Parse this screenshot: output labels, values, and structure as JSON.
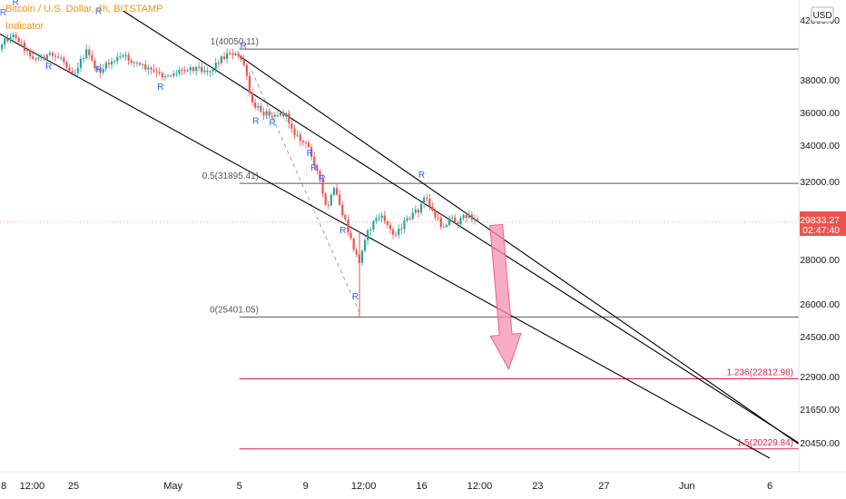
{
  "header": {
    "title": "Bitcoin / U.S. Dollar, 4h, BITSTAMP",
    "indicator": "Indicator"
  },
  "price_axis": {
    "currency": "USD",
    "last_price": "29833.27",
    "countdown": "02:47:40"
  },
  "colors": {
    "up_candle": "#26a69a",
    "down_candle": "#ef5350",
    "channel": "#000000",
    "fib_neutral": "#555555",
    "fib_target": "#e0204a",
    "arrow": "#f48fb1",
    "marker": "#2962ff",
    "title": "#f29312"
  },
  "chart_data": {
    "type": "candlestick",
    "title": "Bitcoin / U.S. Dollar, 4h, BITSTAMP",
    "y_axis_ticks": [
      "42000.00",
      "38000.00",
      "36000.00",
      "34000.00",
      "32000.00",
      "28000.00",
      "26000.00",
      "24500.00",
      "22900.00",
      "21650.00",
      "20450.00"
    ],
    "y_axis_ticks_full": [
      42000,
      38000,
      36000,
      34000,
      32000,
      28000,
      26000,
      24500,
      22900,
      21650,
      20450
    ],
    "x_axis_ticks": [
      "8",
      "12:00",
      "25",
      "May",
      "5",
      "9",
      "12:00",
      "16",
      "12:00",
      "23",
      "27",
      "Jun",
      "6"
    ],
    "fib_levels": [
      {
        "label": "1(40050.11)",
        "value": 40050.11
      },
      {
        "label": "0.5(31895.41)",
        "value": 31895.41
      },
      {
        "label": "0(25401.05)",
        "value": 25401.05
      },
      {
        "label": "1.236(22812.98)",
        "value": 22812.98
      },
      {
        "label": "1.5(20229.84)",
        "value": 20229.84
      }
    ],
    "fib_range_start": "May 5",
    "reversal_marker": "R",
    "last_price": 29833.27,
    "price_path": [
      {
        "t": "Apr 20 00:00",
        "price": 39300
      },
      {
        "t": "Apr 20 18:00",
        "price": 40600
      },
      {
        "t": "Apr 21 12:00",
        "price": 41000
      },
      {
        "t": "Apr 22 06:00",
        "price": 39800
      },
      {
        "t": "Apr 22 18:00",
        "price": 39400
      },
      {
        "t": "Apr 23 12:00",
        "price": 39600
      },
      {
        "t": "Apr 24 06:00",
        "price": 39500
      },
      {
        "t": "Apr 25 00:00",
        "price": 38400
      },
      {
        "t": "Apr 25 18:00",
        "price": 39900
      },
      {
        "t": "Apr 26 12:00",
        "price": 38500
      },
      {
        "t": "Apr 27 06:00",
        "price": 39200
      },
      {
        "t": "Apr 28 00:00",
        "price": 39600
      },
      {
        "t": "Apr 28 18:00",
        "price": 39100
      },
      {
        "t": "Apr 29 12:00",
        "price": 38700
      },
      {
        "t": "Apr 30 06:00",
        "price": 38300
      },
      {
        "t": "May 1 00:00",
        "price": 38400
      },
      {
        "t": "May 1 18:00",
        "price": 38800
      },
      {
        "t": "May 2 12:00",
        "price": 38800
      },
      {
        "t": "May 3 06:00",
        "price": 38600
      },
      {
        "t": "May 3 18:00",
        "price": 39300
      },
      {
        "t": "May 4 12:00",
        "price": 39900
      },
      {
        "t": "May 5 06:00",
        "price": 39200
      },
      {
        "t": "May 5 18:00",
        "price": 36500
      },
      {
        "t": "May 6 12:00",
        "price": 36000
      },
      {
        "t": "May 7 06:00",
        "price": 35900
      },
      {
        "t": "May 7 18:00",
        "price": 35900
      },
      {
        "t": "May 8 12:00",
        "price": 34500
      },
      {
        "t": "May 9 06:00",
        "price": 33800
      },
      {
        "t": "May 9 18:00",
        "price": 32400
      },
      {
        "t": "May 10 06:00",
        "price": 30500
      },
      {
        "t": "May 10 18:00",
        "price": 31600
      },
      {
        "t": "May 11 06:00",
        "price": 30200
      },
      {
        "t": "May 11 18:00",
        "price": 28900
      },
      {
        "t": "May 12 06:00",
        "price": 27800
      },
      {
        "t": "May 12 12:00",
        "price": 29000
      },
      {
        "t": "May 12 18:00",
        "price": 29300
      },
      {
        "t": "May 13 06:00",
        "price": 30100
      },
      {
        "t": "May 13 18:00",
        "price": 30000
      },
      {
        "t": "May 14 06:00",
        "price": 29200
      },
      {
        "t": "May 14 18:00",
        "price": 29600
      },
      {
        "t": "May 15 06:00",
        "price": 30100
      },
      {
        "t": "May 15 18:00",
        "price": 30400
      },
      {
        "t": "May 16 06:00",
        "price": 31200
      },
      {
        "t": "May 16 18:00",
        "price": 30200
      },
      {
        "t": "May 17 06:00",
        "price": 29600
      },
      {
        "t": "May 17 18:00",
        "price": 30100
      },
      {
        "t": "May 18 06:00",
        "price": 29800
      },
      {
        "t": "May 18 18:00",
        "price": 30300
      },
      {
        "t": "May 19 06:00",
        "price": 29900
      },
      {
        "t": "May 19 12:00",
        "price": 29833
      }
    ],
    "channels": [
      {
        "from": {
          "t": "Apr 20 00:00",
          "price": 41400
        },
        "to": {
          "t": "Jun 6 00:00",
          "price": 19900
        }
      },
      {
        "from": {
          "t": "Apr 28 00:00",
          "price": 42600
        },
        "to": {
          "t": "Jun 8 00:00",
          "price": 20350
        }
      },
      {
        "from": {
          "t": "May 5 00:00",
          "price": 39600
        },
        "to": {
          "t": "Jun 8 00:00",
          "price": 20300
        }
      }
    ],
    "projection_arrow": {
      "from": {
        "t": "May 20 12:00",
        "price": 29700
      },
      "to": {
        "t": "May 21 06:00",
        "price": 23200
      }
    },
    "guide_line": {
      "from": {
        "t": "May 5 18:00",
        "price": 38600
      },
      "to": {
        "t": "May 12 06:00",
        "price": 25600
      }
    },
    "reversal_markers": [
      {
        "t": "Apr 20 00:00",
        "price": 38400
      },
      {
        "t": "Apr 20 18:00",
        "price": 42300
      },
      {
        "t": "Apr 21 12:00",
        "price": 43000
      },
      {
        "t": "Apr 23 12:00",
        "price": 38700
      },
      {
        "t": "Apr 26 12:00",
        "price": 42400
      },
      {
        "t": "Apr 26 12:00",
        "price": 38500
      },
      {
        "t": "Apr 30 06:00",
        "price": 37400
      },
      {
        "t": "May 5 06:00",
        "price": 40100
      },
      {
        "t": "May 6 00:00",
        "price": 35300
      },
      {
        "t": "May 7 00:00",
        "price": 35200
      },
      {
        "t": "May 9 06:00",
        "price": 33400
      },
      {
        "t": "May 9 12:00",
        "price": 32600
      },
      {
        "t": "May 10 00:00",
        "price": 32000
      },
      {
        "t": "May 11 06:00",
        "price": 29300
      },
      {
        "t": "May 12 00:00",
        "price": 26200
      },
      {
        "t": "May 16 00:00",
        "price": 32200
      }
    ]
  }
}
